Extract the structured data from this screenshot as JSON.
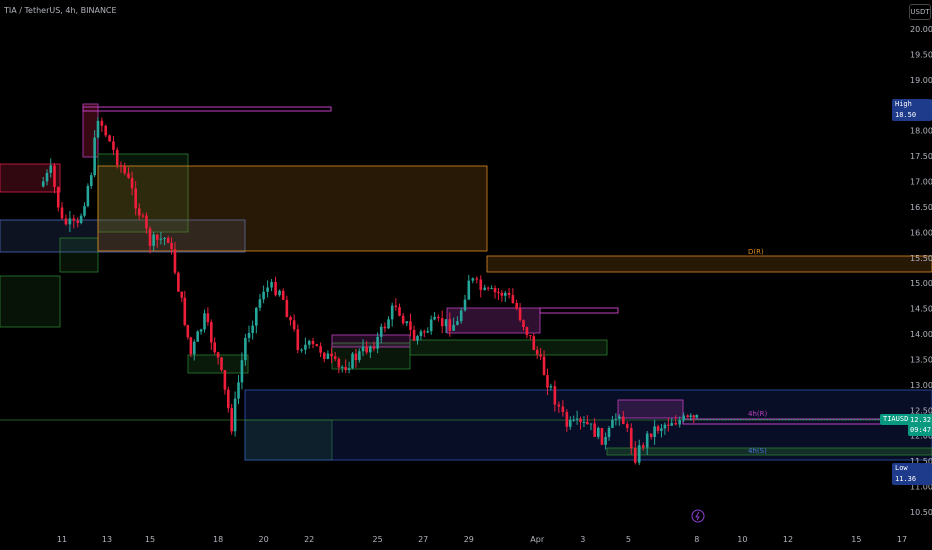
{
  "header": {
    "symbol_text": "TIA / TetherUS, 4h, BINANCE"
  },
  "currency": "USDT",
  "tags": {
    "high_label": "High",
    "high_value": "18.50",
    "low_label": "Low",
    "low_value": "11.36",
    "ticker_label": "TIAUSDT",
    "last_price": "12.32",
    "countdown": "09:47"
  },
  "annotations": {
    "d_r": "D(R)",
    "h4_r": "4h(R)",
    "h4_s": "4h(S)"
  },
  "colors": {
    "up": "#26a69a",
    "down": "#ef1f3c",
    "axis_text": "#b2b5be",
    "orange": "#e08a1e",
    "magenta": "#c040c0",
    "blue": "#2d54b8",
    "green": "#2e7d32"
  },
  "chart_data": {
    "type": "candlestick",
    "title": "TIA / TetherUS, 4h, BINANCE",
    "y_ticks": [
      "20.00",
      "19.50",
      "19.00",
      "18.50",
      "18.00",
      "17.50",
      "17.00",
      "16.50",
      "16.00",
      "15.50",
      "15.00",
      "14.50",
      "14.00",
      "13.50",
      "13.00",
      "12.50",
      "12.00",
      "11.50",
      "11.00",
      "10.50"
    ],
    "x_ticks": [
      "11",
      "13",
      "15",
      "18",
      "20",
      "22",
      "25",
      "27",
      "29",
      "Apr",
      "3",
      "5",
      "8",
      "10",
      "12",
      "15",
      "17"
    ],
    "ylim": [
      10.3,
      20.2
    ],
    "grid": false,
    "price_path": [
      {
        "date": "Mar 10",
        "close": 16.9
      },
      {
        "date": "Mar 10.5",
        "close": 17.2
      },
      {
        "date": "Mar 11",
        "close": 16.2
      },
      {
        "date": "Mar 11.7",
        "close": 16.1
      },
      {
        "date": "Mar 12.3",
        "close": 17.2
      },
      {
        "date": "Mar 12.6",
        "close": 18.3
      },
      {
        "date": "Mar 13.3",
        "close": 17.6
      },
      {
        "date": "Mar 14",
        "close": 17.0
      },
      {
        "date": "Mar 15",
        "close": 15.8
      },
      {
        "date": "Mar 15.8",
        "close": 15.9
      },
      {
        "date": "Mar 16.4",
        "close": 14.6
      },
      {
        "date": "Mar 16.8",
        "close": 13.6
      },
      {
        "date": "Mar 17.4",
        "close": 14.3
      },
      {
        "date": "Mar 18",
        "close": 13.5
      },
      {
        "date": "Mar 18.6",
        "close": 12.2
      },
      {
        "date": "Mar 19.2",
        "close": 13.9
      },
      {
        "date": "Mar 20",
        "close": 14.9
      },
      {
        "date": "Mar 20.7",
        "close": 14.9
      },
      {
        "date": "Mar 21.5",
        "close": 13.8
      },
      {
        "date": "Mar 22.5",
        "close": 13.7
      },
      {
        "date": "Mar 23.3",
        "close": 13.3
      },
      {
        "date": "Mar 24.2",
        "close": 13.6
      },
      {
        "date": "Mar 25",
        "close": 13.9
      },
      {
        "date": "Mar 25.8",
        "close": 14.6
      },
      {
        "date": "Mar 26.6",
        "close": 13.9
      },
      {
        "date": "Mar 27.5",
        "close": 14.2
      },
      {
        "date": "Mar 28.5",
        "close": 14.2
      },
      {
        "date": "Mar 29",
        "close": 15.1
      },
      {
        "date": "Mar 29.7",
        "close": 14.8
      },
      {
        "date": "Mar 30.6",
        "close": 14.8
      },
      {
        "date": "Mar 31.1",
        "close": 14.5
      },
      {
        "date": "Apr 1",
        "close": 13.6
      },
      {
        "date": "Apr 1.6",
        "close": 12.9
      },
      {
        "date": "Apr 2.3",
        "close": 12.2
      },
      {
        "date": "Apr 3.2",
        "close": 12.2
      },
      {
        "date": "Apr 4",
        "close": 11.9
      },
      {
        "date": "Apr 4.6",
        "close": 12.5
      },
      {
        "date": "Apr 5.3",
        "close": 11.6
      },
      {
        "date": "Apr 6",
        "close": 12.1
      },
      {
        "date": "Apr 6.9",
        "close": 12.3
      },
      {
        "date": "Apr 7.6",
        "close": 12.3
      },
      {
        "date": "Apr 8",
        "close": 12.32
      }
    ]
  }
}
